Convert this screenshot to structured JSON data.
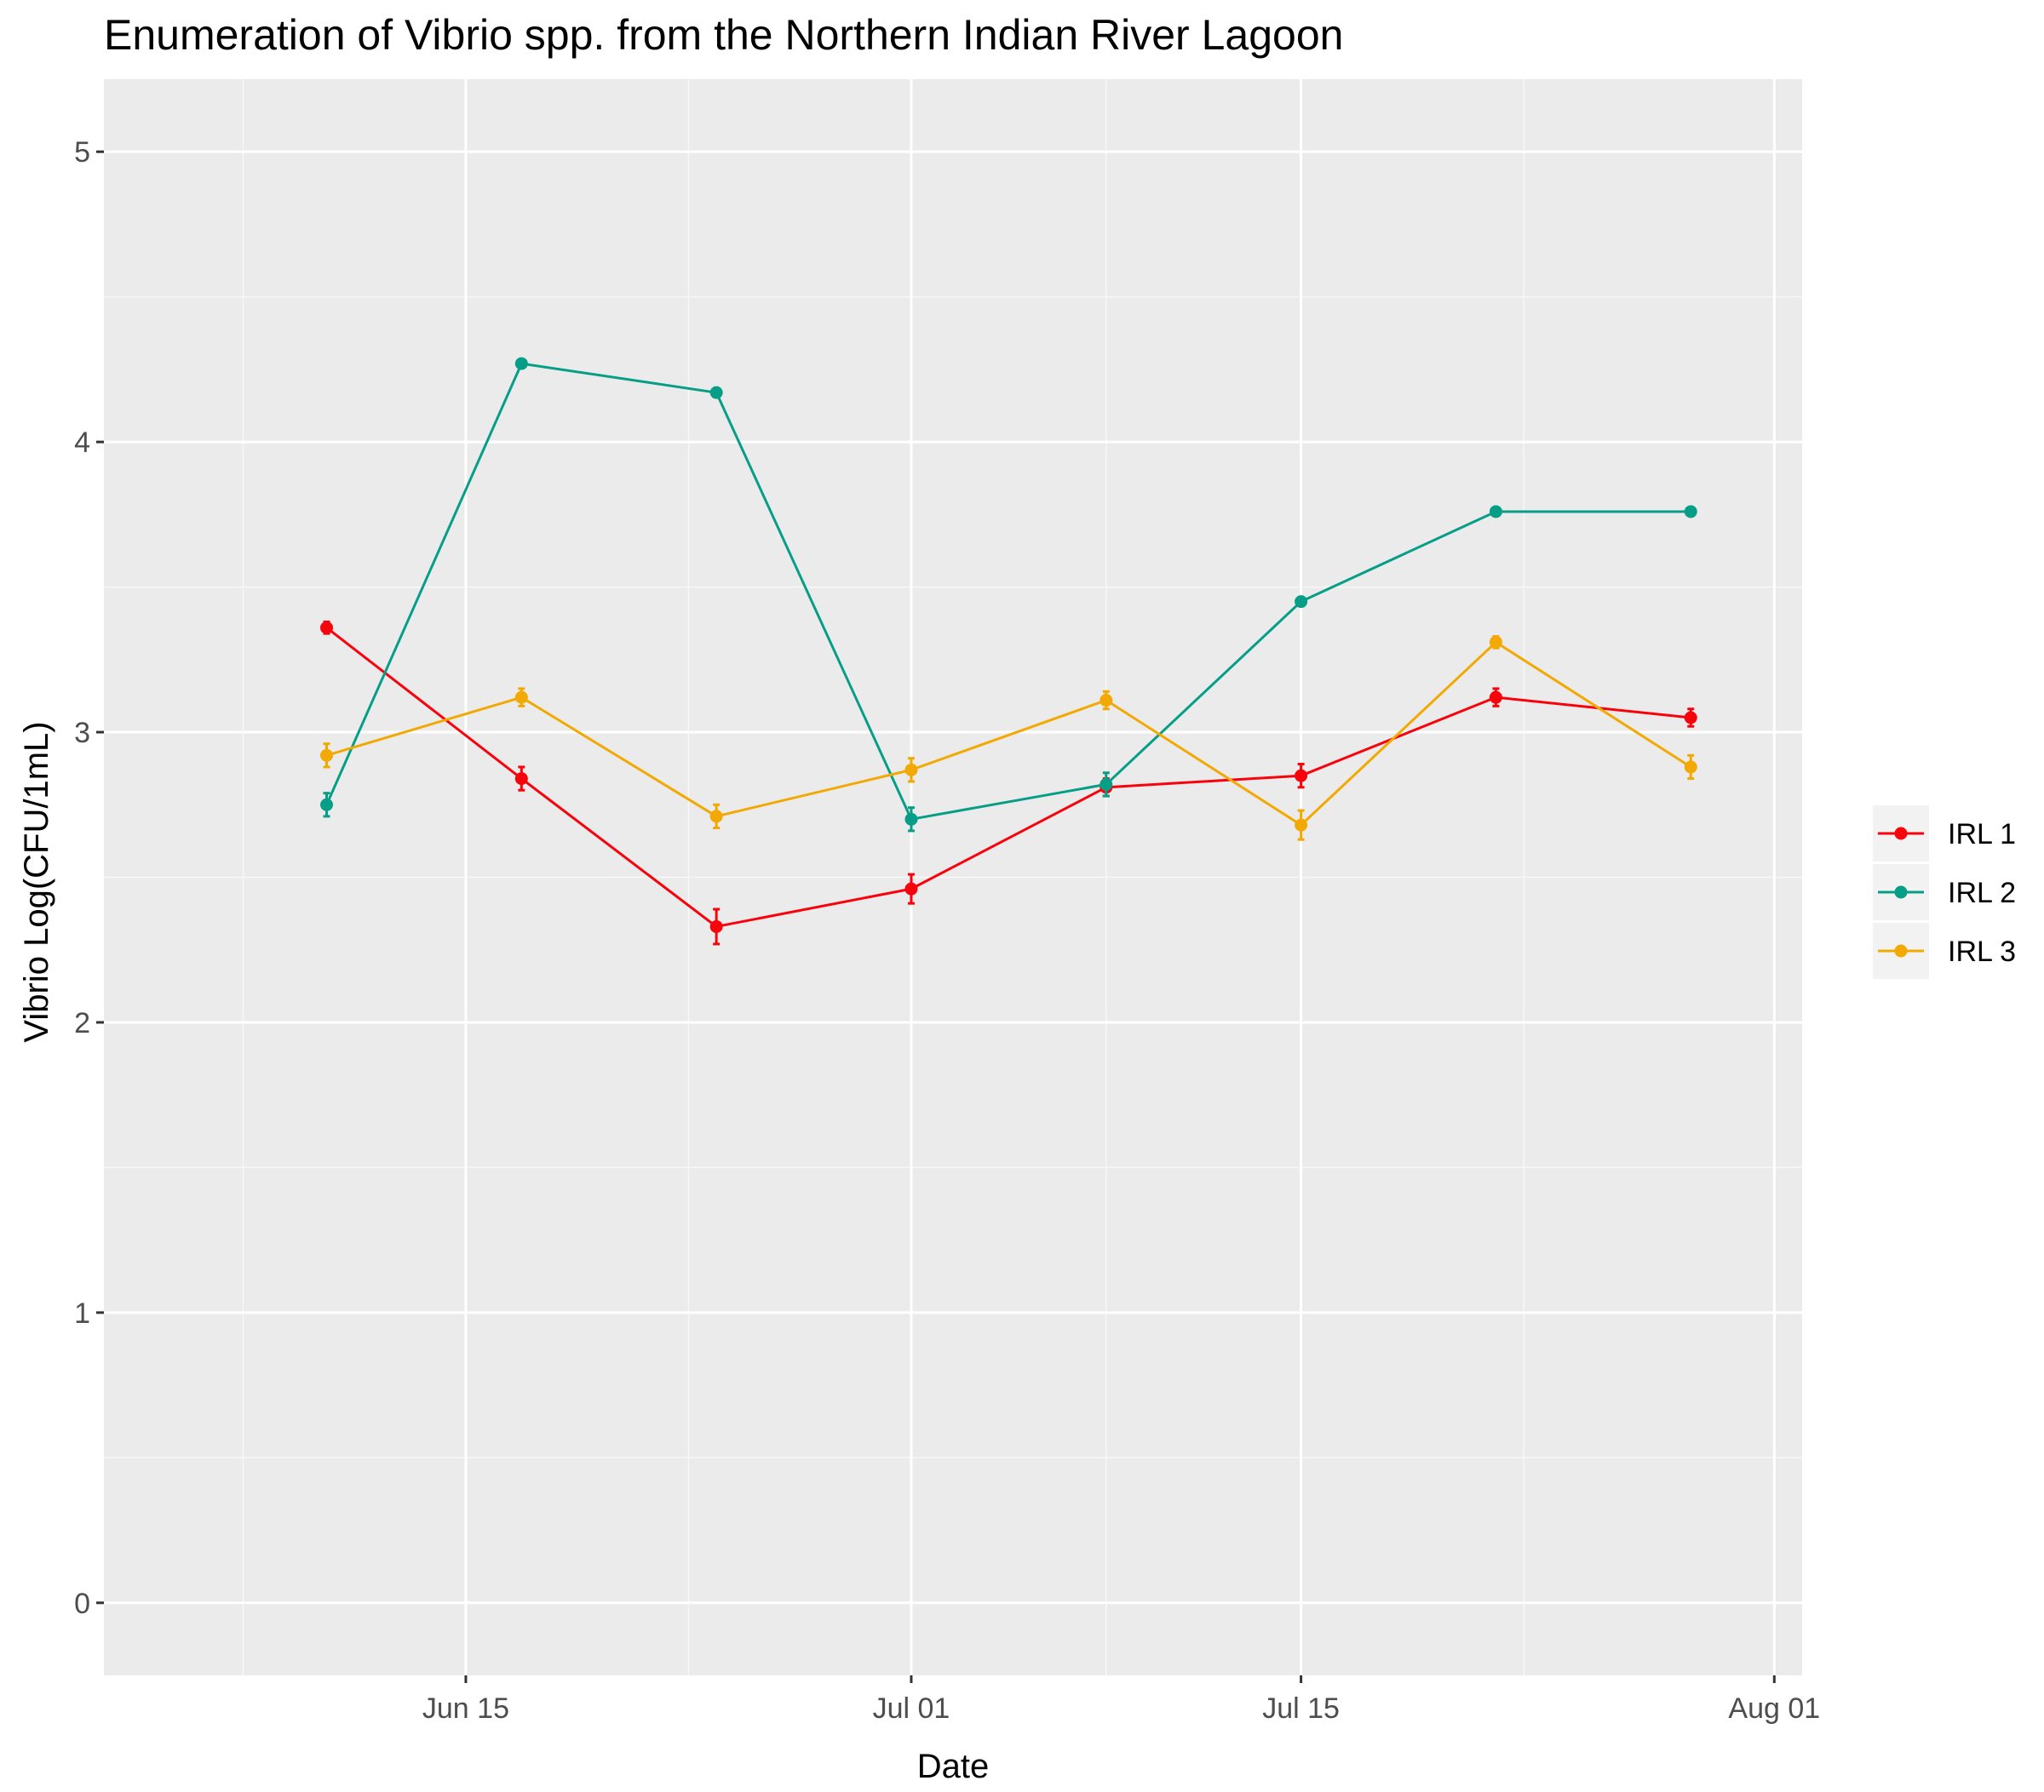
{
  "chart_data": {
    "type": "line",
    "title": "Enumeration of Vibrio spp. from the Northern Indian River Lagoon",
    "xlabel": "Date",
    "ylabel": "Vibrio Log(CFU/1mL)",
    "x_axis": {
      "kind": "date",
      "range": [
        "2021-06-02",
        "2021-08-02"
      ],
      "ticks": [
        {
          "date": "2021-06-15",
          "label": "Jun 15"
        },
        {
          "date": "2021-07-01",
          "label": "Jul 01"
        },
        {
          "date": "2021-07-15",
          "label": "Jul 15"
        },
        {
          "date": "2021-08-01",
          "label": "Aug 01"
        }
      ],
      "minor_ticks": [
        "2021-06-07",
        "2021-06-23",
        "2021-07-08",
        "2021-07-23"
      ]
    },
    "y_axis": {
      "range": [
        -0.25,
        5.25
      ],
      "ticks": [
        0,
        1,
        2,
        3,
        4,
        5
      ]
    },
    "grid": true,
    "legend": "right",
    "x": [
      "2021-06-10",
      "2021-06-17",
      "2021-06-24",
      "2021-07-01",
      "2021-07-08",
      "2021-07-15",
      "2021-07-22",
      "2021-07-29"
    ],
    "series": [
      {
        "name": "IRL 1",
        "color": "#F8030C",
        "values": [
          3.36,
          2.84,
          2.33,
          2.46,
          2.81,
          2.85,
          3.12,
          3.05
        ],
        "error": [
          0.02,
          0.04,
          0.06,
          0.05,
          0.03,
          0.04,
          0.03,
          0.03
        ]
      },
      {
        "name": "IRL 2",
        "color": "#079E87",
        "values": [
          2.75,
          4.27,
          4.17,
          2.7,
          2.82,
          3.45,
          3.76,
          3.76
        ],
        "error": [
          0.04,
          0.01,
          0.01,
          0.04,
          0.04,
          0.01,
          0.01,
          0.01
        ]
      },
      {
        "name": "IRL 3",
        "color": "#F2A904",
        "values": [
          2.92,
          3.12,
          2.71,
          2.87,
          3.11,
          2.68,
          3.31,
          2.88
        ],
        "error": [
          0.04,
          0.03,
          0.04,
          0.04,
          0.03,
          0.05,
          0.02,
          0.04
        ]
      }
    ]
  }
}
